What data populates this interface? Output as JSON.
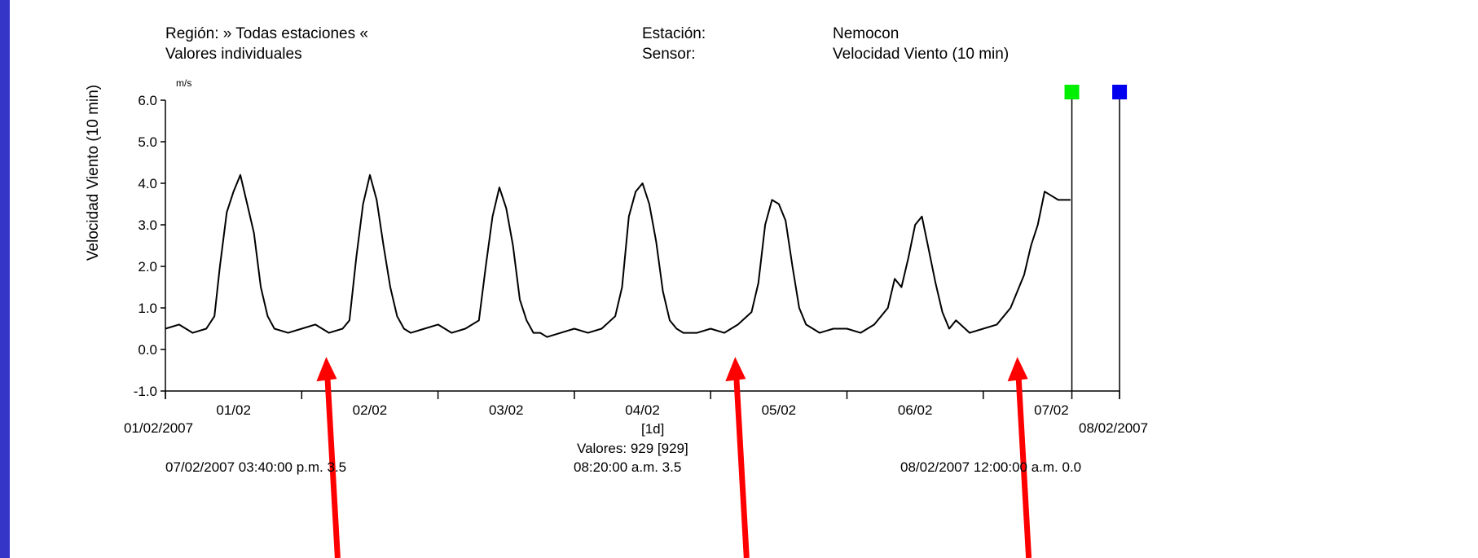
{
  "header": {
    "region_label": "Región: » Todas estaciones «",
    "values_label": "Valores individuales",
    "station_label": "Estación:",
    "station_value": "Nemocon",
    "sensor_label": "Sensor:",
    "sensor_value": "Velocidad Viento (10 min)"
  },
  "footer": {
    "start_date": "01/02/2007",
    "end_date": "08/02/2007",
    "interval": "[1d]",
    "count": "Valores: 929 [929]",
    "cursor_left": "07/02/2007 03:40:00 p.m.   3.5",
    "cursor_mid": "08:20:00 a.m.   3.5",
    "cursor_right": "08/02/2007 12:00:00 a.m.   0.0"
  },
  "colors": {
    "background": "#3535c8",
    "series": "#000000",
    "marker_green": "#00ee00",
    "marker_blue": "#0000ee",
    "arrow": "#ff0000"
  },
  "chart_data": {
    "type": "line",
    "title": "",
    "xlabel": "",
    "ylabel": "Velocidad Viento (10 min)",
    "unit": "m/s",
    "ylim": [
      -1.0,
      6.0
    ],
    "yticks": [
      "6.0",
      "5.0",
      "4.0",
      "3.0",
      "2.0",
      "1.0",
      "0.0",
      "-1.0"
    ],
    "xticks": [
      "01/02",
      "02/02",
      "03/02",
      "04/02",
      "05/02",
      "06/02",
      "07/02"
    ],
    "xlim_days": [
      0,
      7
    ],
    "grid": false,
    "series": [
      {
        "x_days": [
          0.0,
          0.1,
          0.2,
          0.3,
          0.36,
          0.4,
          0.45,
          0.5,
          0.55,
          0.6,
          0.65,
          0.7,
          0.75,
          0.8,
          0.9,
          1.0,
          1.1,
          1.2,
          1.3,
          1.35,
          1.4,
          1.45,
          1.5,
          1.55,
          1.6,
          1.65,
          1.7,
          1.75,
          1.8,
          1.9,
          2.0,
          2.1,
          2.2,
          2.3,
          2.35,
          2.4,
          2.45,
          2.5,
          2.55,
          2.6,
          2.65,
          2.7,
          2.75,
          2.8,
          2.9,
          3.0,
          3.1,
          3.2,
          3.3,
          3.35,
          3.4,
          3.45,
          3.5,
          3.55,
          3.6,
          3.65,
          3.7,
          3.75,
          3.8,
          3.9,
          4.0,
          4.1,
          4.2,
          4.3,
          4.35,
          4.4,
          4.45,
          4.5,
          4.55,
          4.6,
          4.65,
          4.7,
          4.75,
          4.8,
          4.9,
          5.0,
          5.1,
          5.2,
          5.3,
          5.35,
          5.4,
          5.45,
          5.5,
          5.55,
          5.6,
          5.65,
          5.7,
          5.75,
          5.8,
          5.9,
          6.0,
          6.1,
          6.2,
          6.3,
          6.35,
          6.4,
          6.45,
          6.5,
          6.55,
          6.6,
          6.64
        ],
        "y": [
          0.5,
          0.6,
          0.4,
          0.5,
          0.8,
          2.0,
          3.3,
          3.8,
          4.2,
          3.5,
          2.8,
          1.5,
          0.8,
          0.5,
          0.4,
          0.5,
          0.6,
          0.4,
          0.5,
          0.7,
          2.2,
          3.5,
          4.2,
          3.6,
          2.5,
          1.5,
          0.8,
          0.5,
          0.4,
          0.5,
          0.6,
          0.4,
          0.5,
          0.7,
          2.0,
          3.2,
          3.9,
          3.4,
          2.5,
          1.2,
          0.7,
          0.4,
          0.4,
          0.3,
          0.4,
          0.5,
          0.4,
          0.5,
          0.8,
          1.5,
          3.2,
          3.8,
          4.0,
          3.5,
          2.6,
          1.4,
          0.7,
          0.5,
          0.4,
          0.4,
          0.5,
          0.4,
          0.6,
          0.9,
          1.6,
          3.0,
          3.6,
          3.5,
          3.1,
          2.0,
          1.0,
          0.6,
          0.5,
          0.4,
          0.5,
          0.5,
          0.4,
          0.6,
          1.0,
          1.7,
          1.5,
          2.2,
          3.0,
          3.2,
          2.4,
          1.6,
          0.9,
          0.5,
          0.7,
          0.4,
          0.5,
          0.6,
          1.0,
          1.8,
          2.5,
          3.0,
          3.8,
          3.7,
          3.6,
          3.6,
          3.6
        ]
      }
    ],
    "markers": [
      {
        "color": "green",
        "x_days": 6.65
      },
      {
        "color": "blue",
        "x_days": 7.0
      }
    ],
    "annotation_arrows": [
      {
        "target_day": 1.18,
        "target_y": -0.1
      },
      {
        "target_day": 4.18,
        "target_y": -0.1
      },
      {
        "target_day": 6.25,
        "target_y": -0.1
      }
    ]
  }
}
